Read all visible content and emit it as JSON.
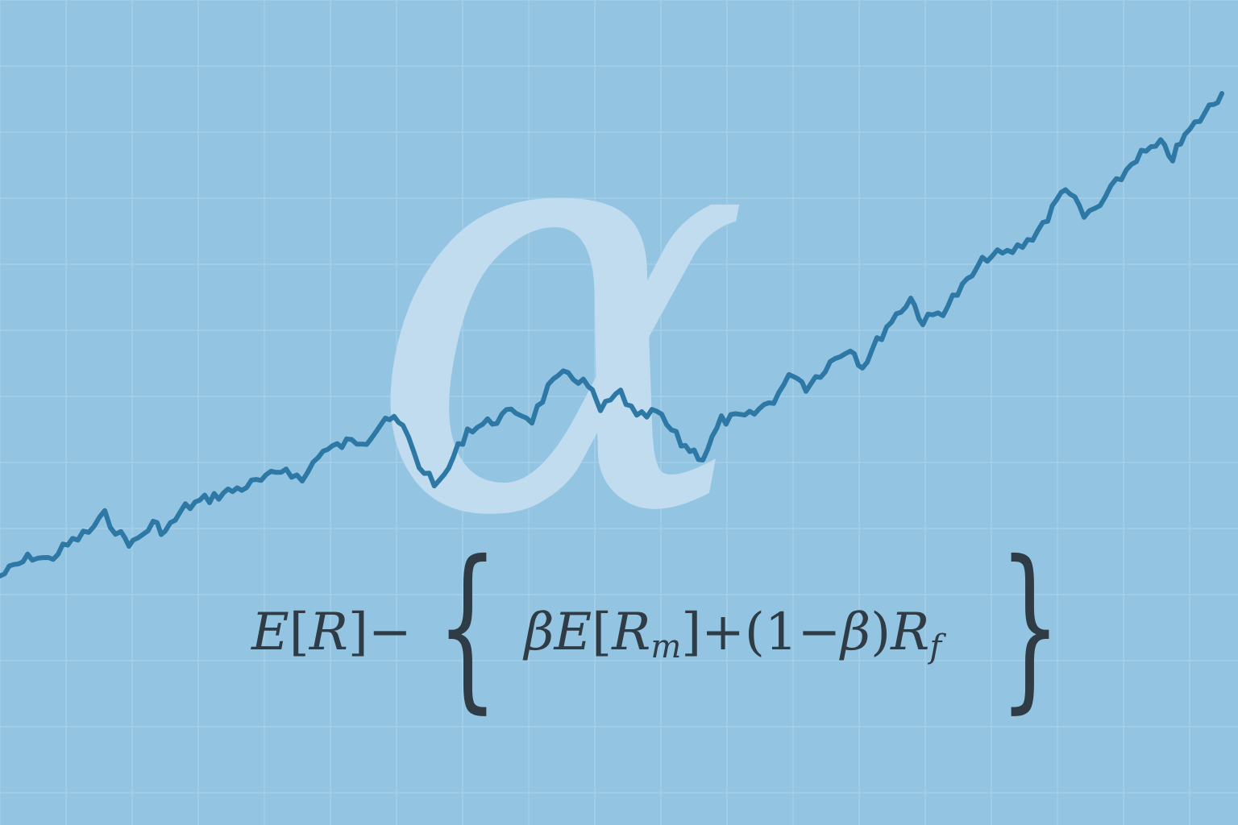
{
  "symbol": "α",
  "formula": {
    "expected_return": "E",
    "lbracket": "[",
    "r": "R",
    "rbracket": "]",
    "minus": "−",
    "left_brace": "{",
    "beta": "β",
    "market_e": "E",
    "market_lbracket": "[",
    "market_r": "R",
    "market_sub": "m",
    "market_rbracket": "]",
    "plus": "+",
    "open_paren": "(",
    "one": "1",
    "minus2": "−",
    "beta2": "β",
    "close_paren": ")",
    "rf": "R",
    "rf_sub": "f",
    "right_brace": "}"
  },
  "colors": {
    "background": "#93c5e2",
    "grid": "#a8d1ea",
    "line": "#2e78a6",
    "alpha_glyph": "#c0dcee",
    "formula_text": "#2f3b45"
  }
}
